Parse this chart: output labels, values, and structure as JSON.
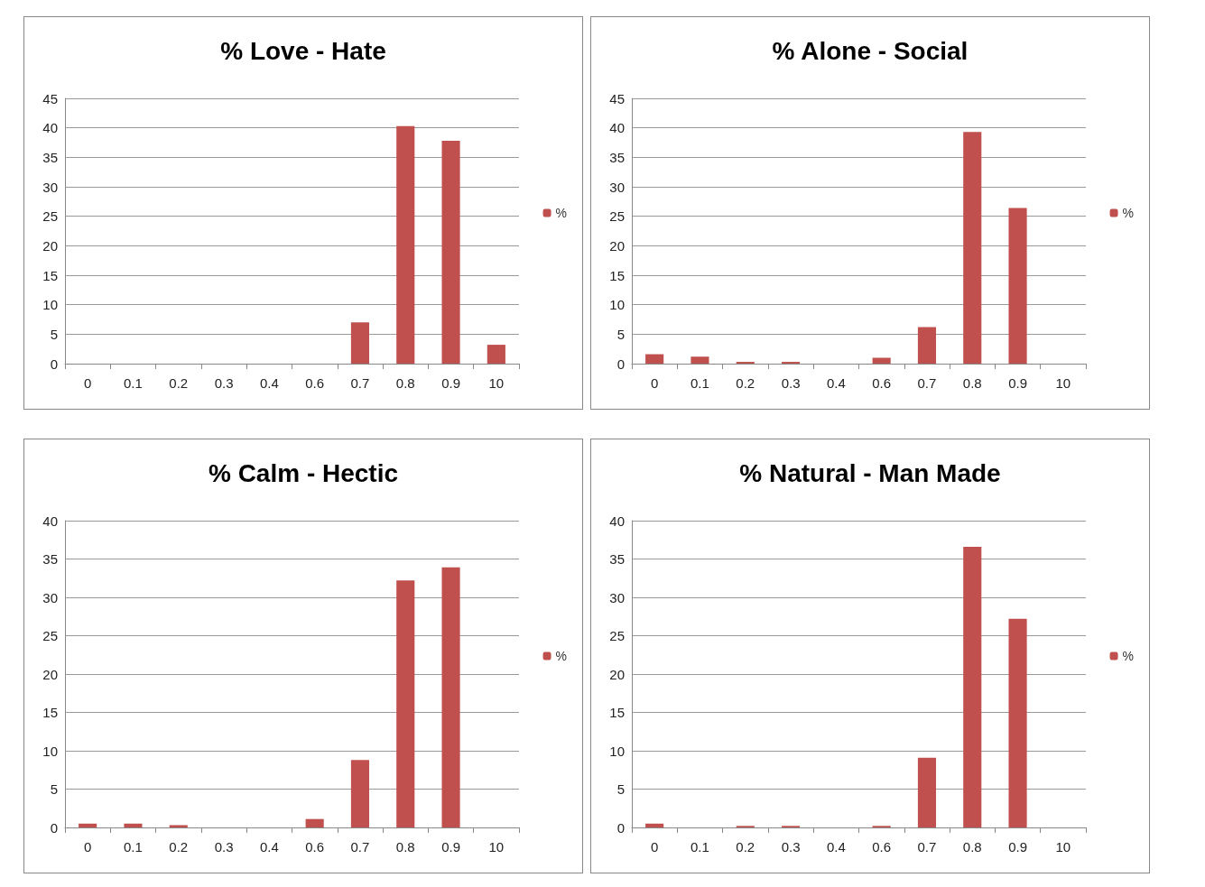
{
  "chart_data": [
    {
      "type": "bar",
      "title": "% Love - Hate",
      "categories": [
        "0",
        "0.1",
        "0.2",
        "0.3",
        "0.4",
        "0.6",
        "0.7",
        "0.8",
        "0.9",
        "10"
      ],
      "series": [
        {
          "name": "%",
          "color": "#c0504d",
          "values": [
            0,
            0,
            0,
            0,
            0,
            0,
            7,
            40.3,
            37.8,
            3.2
          ]
        }
      ],
      "ylim": [
        0,
        45
      ],
      "yticks": [
        0,
        5,
        10,
        15,
        20,
        25,
        30,
        35,
        40,
        45
      ],
      "grid": "y",
      "legend": "right"
    },
    {
      "type": "bar",
      "title": "% Alone - Social",
      "categories": [
        "0",
        "0.1",
        "0.2",
        "0.3",
        "0.4",
        "0.6",
        "0.7",
        "0.8",
        "0.9",
        "10"
      ],
      "series": [
        {
          "name": "%",
          "color": "#c0504d",
          "values": [
            1.6,
            1.2,
            0.3,
            0.3,
            0,
            1.0,
            6.2,
            39.3,
            26.4,
            0
          ]
        }
      ],
      "ylim": [
        0,
        45
      ],
      "yticks": [
        0,
        5,
        10,
        15,
        20,
        25,
        30,
        35,
        40,
        45
      ],
      "grid": "y",
      "legend": "right"
    },
    {
      "type": "bar",
      "title": "% Calm - Hectic",
      "categories": [
        "0",
        "0.1",
        "0.2",
        "0.3",
        "0.4",
        "0.6",
        "0.7",
        "0.8",
        "0.9",
        "10"
      ],
      "series": [
        {
          "name": "%",
          "color": "#c0504d",
          "values": [
            0.5,
            0.5,
            0.3,
            0,
            0,
            1.1,
            8.8,
            32.2,
            33.9,
            0
          ]
        }
      ],
      "ylim": [
        0,
        40
      ],
      "yticks": [
        0,
        5,
        10,
        15,
        20,
        25,
        30,
        35,
        40
      ],
      "grid": "y",
      "legend": "right"
    },
    {
      "type": "bar",
      "title": "% Natural - Man Made",
      "categories": [
        "0",
        "0.1",
        "0.2",
        "0.3",
        "0.4",
        "0.6",
        "0.7",
        "0.8",
        "0.9",
        "10"
      ],
      "series": [
        {
          "name": "%",
          "color": "#c0504d",
          "values": [
            0.5,
            0,
            0.2,
            0.2,
            0,
            0.2,
            9.1,
            36.6,
            27.2,
            0
          ]
        }
      ],
      "ylim": [
        0,
        40
      ],
      "yticks": [
        0,
        5,
        10,
        15,
        20,
        25,
        30,
        35,
        40
      ],
      "grid": "y",
      "legend": "right"
    }
  ]
}
